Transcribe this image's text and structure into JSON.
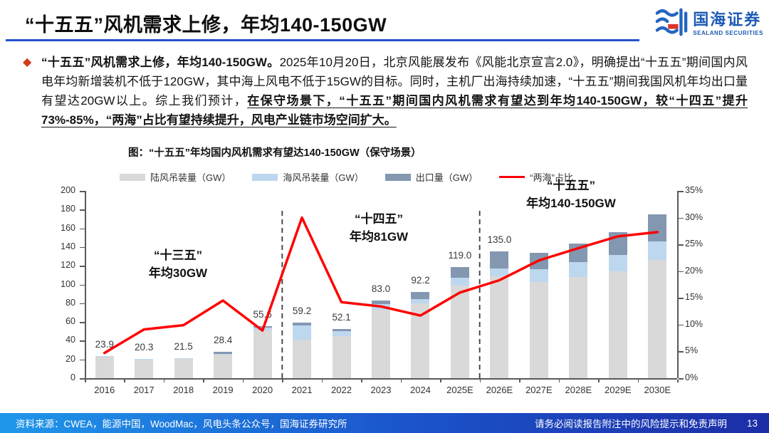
{
  "header": {
    "title": "“十五五”风机需求上修，年均140-150GW",
    "logo_cn": "国海证券",
    "logo_en": "SEALAND SECURITIES",
    "accent_blue": "#2153cc",
    "logo_blue": "#1c5ab4",
    "logo_red": "#d8352c"
  },
  "body": {
    "bullet_icon": "◆",
    "bullet_color": "#d43a1e",
    "bold_lead": "“十五五”风机需求上修，年均140-150GW。",
    "regular_mid": "2025年10月20日，北京风能展发布《风能北京宣言2.0》，明确提出“十五五”期间国内风电年均新增装机不低于120GW，其中海上风电不低于15GW的目标。同时，主机厂出海持续加速，“十五五”期间我国风机年均出口量有望达20GW以上。综上我们预计，",
    "bold_underline_end": "在保守场景下，“十五五”期间国内风机需求有望达到年均140-150GW，较“十四五”提升73%-85%，“两海”占比有望持续提升，风电产业链市场空间扩大。"
  },
  "chart_data": {
    "type": "bar+line",
    "title": "图：“十五五”年均国内风机需求有望达140-150GW（保守场景）",
    "categories": [
      "2016",
      "2017",
      "2018",
      "2019",
      "2020",
      "2021",
      "2022",
      "2023",
      "2024",
      "2025E",
      "2026E",
      "2027E",
      "2028E",
      "2029E",
      "2030E"
    ],
    "series": [
      {
        "name": "陆风吊装量（GW）",
        "type": "bar",
        "color": "#d9d9d9",
        "values": [
          23.2,
          19.6,
          20.3,
          25.1,
          50.6,
          41.4,
          44.7,
          72.9,
          80.0,
          99.0,
          109.0,
          103.0,
          108.0,
          114.0,
          126.0
        ]
      },
      {
        "name": "海风吊装量（GW）",
        "type": "bar",
        "color": "#bdd7ee",
        "values": [
          0.7,
          0.7,
          1.2,
          1.0,
          3.1,
          14.5,
          5.2,
          6.3,
          4.5,
          8.0,
          8.4,
          13.0,
          16.0,
          17.5,
          20.0
        ]
      },
      {
        "name": "出口量（GW）",
        "type": "bar",
        "color": "#8497b0",
        "values": [
          0.0,
          0.0,
          0.0,
          2.3,
          1.9,
          3.3,
          2.2,
          3.8,
          7.7,
          12.0,
          17.6,
          18.0,
          20.0,
          24.5,
          29.0
        ]
      },
      {
        "name": "“两海”占比",
        "type": "line",
        "axis": "right",
        "color": "#ff0000",
        "values": [
          4.7,
          9.1,
          9.9,
          14.5,
          8.9,
          30.0,
          14.2,
          13.4,
          11.7,
          16.0,
          18.3,
          22.0,
          24.3,
          26.5,
          27.3
        ]
      }
    ],
    "bar_total_labels": [
      "23.9",
      "20.3",
      "21.5",
      "28.4",
      "55.6",
      "59.2",
      "52.1",
      "83.0",
      "92.2",
      "119.0",
      "135.0",
      "",
      "",
      "",
      ""
    ],
    "left_axis": {
      "min": 0,
      "max": 200,
      "step": 20
    },
    "right_axis": {
      "min": 0,
      "max": 35,
      "step": 5,
      "suffix": "%"
    },
    "grid": false,
    "legend_position": "top",
    "period_divider_after_index": [
      4,
      9
    ],
    "annotations": [
      {
        "line1": "“十三五”",
        "line2": "年均30GW"
      },
      {
        "line1": "“十四五”",
        "line2": "年均81GW"
      },
      {
        "line1": "“十五五”",
        "line2": "年均140-150GW"
      }
    ]
  },
  "footer": {
    "source": "资料来源：CWEA，能源中国，WoodMac，风电头条公众号，国海证券研究所",
    "disclaimer": "请务必阅读报告附注中的风险提示和免责声明",
    "page_number": "13"
  }
}
